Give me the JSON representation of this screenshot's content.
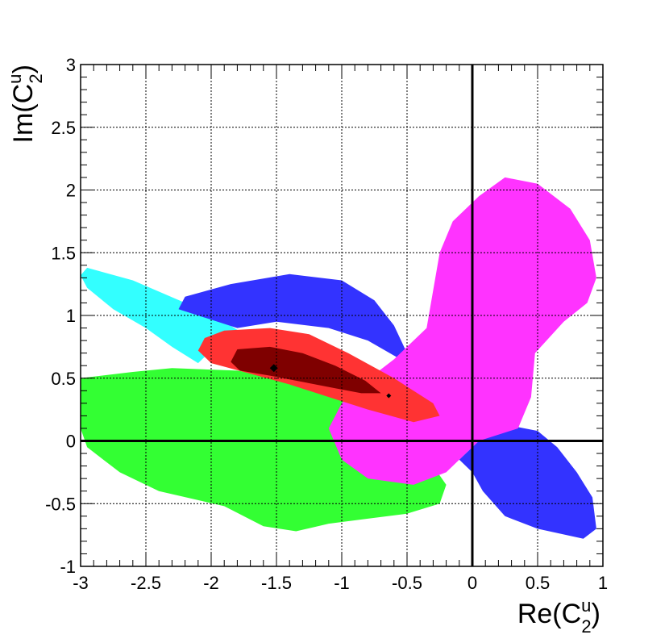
{
  "chart_data": {
    "type": "contour",
    "x_axis": {
      "label_base": "Re(C",
      "label_sup": "u",
      "label_sub": "2",
      "label_close": ")",
      "range": [
        -3,
        1
      ],
      "ticks": [
        -3,
        -2.5,
        -2,
        -1.5,
        -1,
        -0.5,
        0,
        0.5,
        1
      ],
      "tick_labels": [
        "-3",
        "-2.5",
        "-2",
        "-1.5",
        "-1",
        "-0.5",
        "0",
        "0.5",
        "1"
      ]
    },
    "y_axis": {
      "label_base": "Im(C",
      "label_sup": "u",
      "label_sub": "2",
      "label_close": ")",
      "range": [
        -1,
        3
      ],
      "ticks": [
        -1,
        -0.5,
        0,
        0.5,
        1,
        1.5,
        2,
        2.5,
        3
      ],
      "tick_labels": [
        "-1",
        "-0.5",
        "0",
        "0.5",
        "1",
        "1.5",
        "2",
        "2.5",
        "3"
      ]
    },
    "grid": true,
    "reference_lines": {
      "x": 0,
      "y": 0
    },
    "regions": [
      {
        "color": "#33ff33",
        "points": [
          [
            -3,
            0.5
          ],
          [
            -2.6,
            0.55
          ],
          [
            -2.3,
            0.58
          ],
          [
            -1.8,
            0.56
          ],
          [
            -1.4,
            0.5
          ],
          [
            -1.0,
            0.4
          ],
          [
            -0.7,
            0.25
          ],
          [
            -0.45,
            0.05
          ],
          [
            -0.3,
            -0.2
          ],
          [
            -0.2,
            -0.35
          ],
          [
            -0.25,
            -0.5
          ],
          [
            -0.5,
            -0.58
          ],
          [
            -0.8,
            -0.62
          ],
          [
            -1.1,
            -0.66
          ],
          [
            -1.35,
            -0.72
          ],
          [
            -1.6,
            -0.68
          ],
          [
            -1.9,
            -0.52
          ],
          [
            -2.4,
            -0.4
          ],
          [
            -2.7,
            -0.25
          ],
          [
            -2.95,
            -0.05
          ],
          [
            -3,
            0.1
          ]
        ]
      },
      {
        "color": "#33ffff",
        "points": [
          [
            -2.95,
            1.38
          ],
          [
            -2.6,
            1.28
          ],
          [
            -2.2,
            1.1
          ],
          [
            -1.9,
            0.95
          ],
          [
            -1.7,
            0.82
          ],
          [
            -2.0,
            0.72
          ],
          [
            -2.1,
            0.62
          ],
          [
            -2.3,
            0.75
          ],
          [
            -2.5,
            0.9
          ],
          [
            -2.75,
            1.05
          ],
          [
            -2.95,
            1.22
          ],
          [
            -3,
            1.32
          ]
        ]
      },
      {
        "color": "#3333ff",
        "points": [
          [
            -1.85,
            1.25
          ],
          [
            -1.4,
            1.33
          ],
          [
            -1.0,
            1.28
          ],
          [
            -0.75,
            1.12
          ],
          [
            -0.6,
            0.92
          ],
          [
            -0.5,
            0.7
          ],
          [
            -0.55,
            0.65
          ],
          [
            -0.8,
            0.8
          ],
          [
            -1.1,
            0.9
          ],
          [
            -1.5,
            0.95
          ],
          [
            -1.8,
            0.9
          ],
          [
            -2.25,
            1.05
          ],
          [
            -2.2,
            1.15
          ]
        ]
      },
      {
        "color": "#3333ff",
        "points": [
          [
            -0.1,
            -0.15
          ],
          [
            0.1,
            0.05
          ],
          [
            0.3,
            0.12
          ],
          [
            0.5,
            0.08
          ],
          [
            0.65,
            -0.05
          ],
          [
            0.8,
            -0.25
          ],
          [
            0.92,
            -0.45
          ],
          [
            0.95,
            -0.7
          ],
          [
            0.85,
            -0.78
          ],
          [
            0.5,
            -0.7
          ],
          [
            0.25,
            -0.6
          ],
          [
            0.08,
            -0.4
          ],
          [
            0.0,
            -0.25
          ]
        ]
      },
      {
        "color": "#ff33ff",
        "points": [
          [
            0.05,
            1.95
          ],
          [
            0.25,
            2.1
          ],
          [
            0.5,
            2.05
          ],
          [
            0.75,
            1.85
          ],
          [
            0.9,
            1.6
          ],
          [
            0.95,
            1.3
          ],
          [
            0.88,
            1.1
          ],
          [
            0.7,
            0.95
          ],
          [
            0.48,
            0.7
          ],
          [
            0.45,
            0.35
          ],
          [
            0.35,
            0.1
          ],
          [
            0.2,
            0.05
          ],
          [
            0.05,
            0.0
          ],
          [
            -0.05,
            -0.1
          ],
          [
            -0.2,
            -0.25
          ],
          [
            -0.45,
            -0.35
          ],
          [
            -0.8,
            -0.3
          ],
          [
            -1.0,
            -0.15
          ],
          [
            -1.1,
            0.1
          ],
          [
            -1.0,
            0.3
          ],
          [
            -0.85,
            0.45
          ],
          [
            -0.6,
            0.65
          ],
          [
            -0.35,
            0.9
          ],
          [
            -0.3,
            1.2
          ],
          [
            -0.25,
            1.5
          ],
          [
            -0.15,
            1.75
          ]
        ]
      },
      {
        "color": "#ff3333",
        "points": [
          [
            -1.9,
            0.88
          ],
          [
            -1.55,
            0.9
          ],
          [
            -1.25,
            0.85
          ],
          [
            -0.95,
            0.7
          ],
          [
            -0.6,
            0.5
          ],
          [
            -0.3,
            0.3
          ],
          [
            -0.25,
            0.2
          ],
          [
            -0.45,
            0.15
          ],
          [
            -0.8,
            0.25
          ],
          [
            -1.1,
            0.35
          ],
          [
            -1.4,
            0.45
          ],
          [
            -1.75,
            0.55
          ],
          [
            -2.0,
            0.62
          ],
          [
            -2.1,
            0.72
          ],
          [
            -2.05,
            0.82
          ]
        ]
      },
      {
        "color": "#7f0000",
        "points": [
          [
            -1.8,
            0.73
          ],
          [
            -1.55,
            0.75
          ],
          [
            -1.3,
            0.7
          ],
          [
            -1.05,
            0.6
          ],
          [
            -0.82,
            0.48
          ],
          [
            -0.7,
            0.38
          ],
          [
            -0.85,
            0.38
          ],
          [
            -1.05,
            0.42
          ],
          [
            -1.3,
            0.47
          ],
          [
            -1.55,
            0.52
          ],
          [
            -1.78,
            0.56
          ],
          [
            -1.85,
            0.63
          ]
        ]
      }
    ],
    "markers": [
      {
        "x": -1.52,
        "y": 0.58,
        "color": "#000000"
      },
      {
        "x": -0.64,
        "y": 0.36,
        "color": "#000000"
      }
    ]
  }
}
